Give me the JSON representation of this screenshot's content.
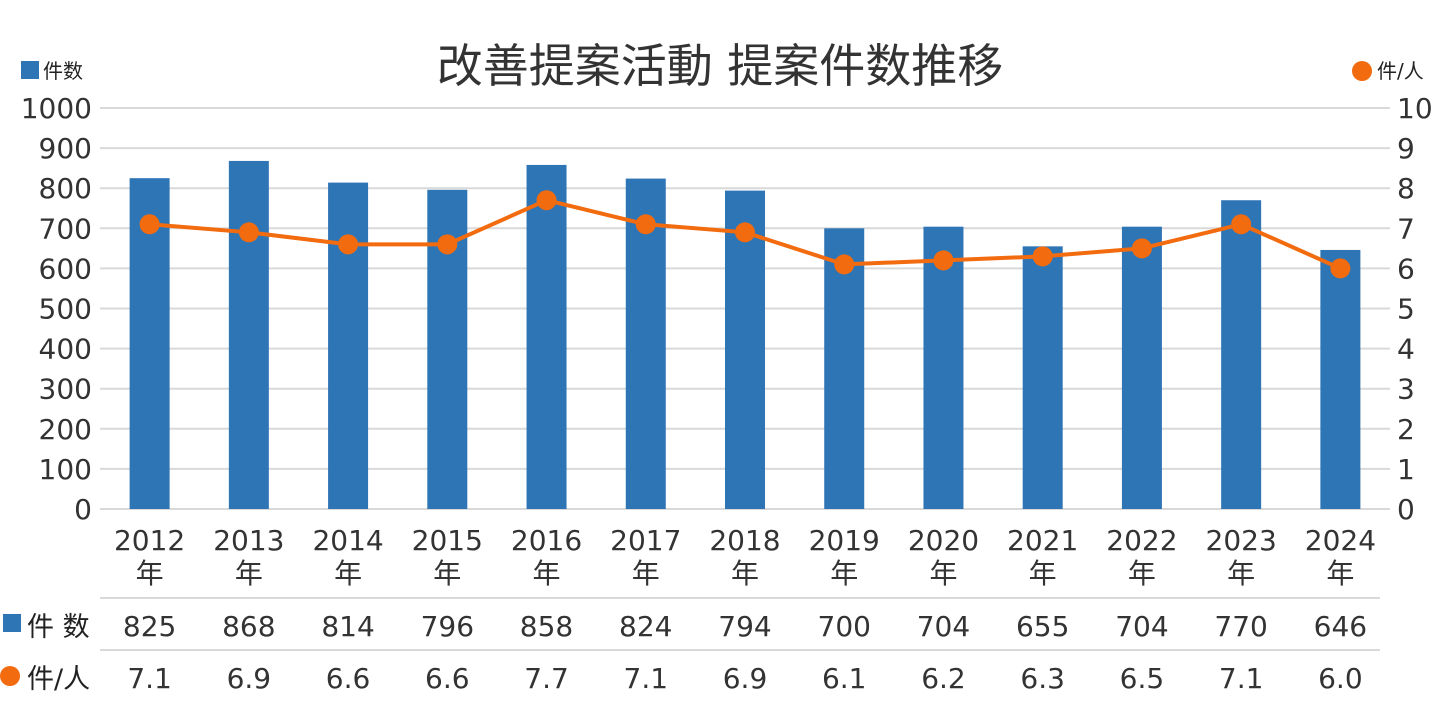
{
  "title": "改善提案活動 提案件数推移",
  "colors": {
    "bar": "#2e75b6",
    "line": "#f26b0f",
    "grid": "#d9d9d9",
    "text": "#333333"
  },
  "chart_data": {
    "type": "bar",
    "title": "改善提案活動 提案件数推移",
    "categories": [
      "2012年",
      "2013年",
      "2014年",
      "2015年",
      "2016年",
      "2017年",
      "2018年",
      "2019年",
      "2020年",
      "2021年",
      "2022年",
      "2023年",
      "2024年"
    ],
    "series": [
      {
        "name": "件数",
        "type": "bar",
        "axis": "left",
        "values": [
          825,
          868,
          814,
          796,
          858,
          824,
          794,
          700,
          704,
          655,
          704,
          770,
          646
        ]
      },
      {
        "name": "件/人",
        "type": "line",
        "axis": "right",
        "values": [
          7.1,
          6.9,
          6.6,
          6.6,
          7.7,
          7.1,
          6.9,
          6.1,
          6.2,
          6.3,
          6.5,
          7.1,
          6.0
        ]
      }
    ],
    "y_left": {
      "label": "件数",
      "min": 0,
      "max": 1000,
      "ticks": [
        0,
        100,
        200,
        300,
        400,
        500,
        600,
        700,
        800,
        900,
        1000
      ]
    },
    "y_right": {
      "label": "件/人",
      "min": 0,
      "max": 10,
      "ticks": [
        0,
        1,
        2,
        3,
        4,
        5,
        6,
        7,
        8,
        9,
        10
      ]
    },
    "grid": true,
    "legend": "top-left and top-right",
    "data_table": {
      "rows": [
        {
          "label": "件 数",
          "values": [
            "825",
            "868",
            "814",
            "796",
            "858",
            "824",
            "794",
            "700",
            "704",
            "655",
            "704",
            "770",
            "646"
          ]
        },
        {
          "label": "件/人",
          "values": [
            "7.1",
            "6.9",
            "6.6",
            "6.6",
            "7.7",
            "7.1",
            "6.9",
            "6.1",
            "6.2",
            "6.3",
            "6.5",
            "7.1",
            "6.0"
          ]
        }
      ]
    }
  }
}
